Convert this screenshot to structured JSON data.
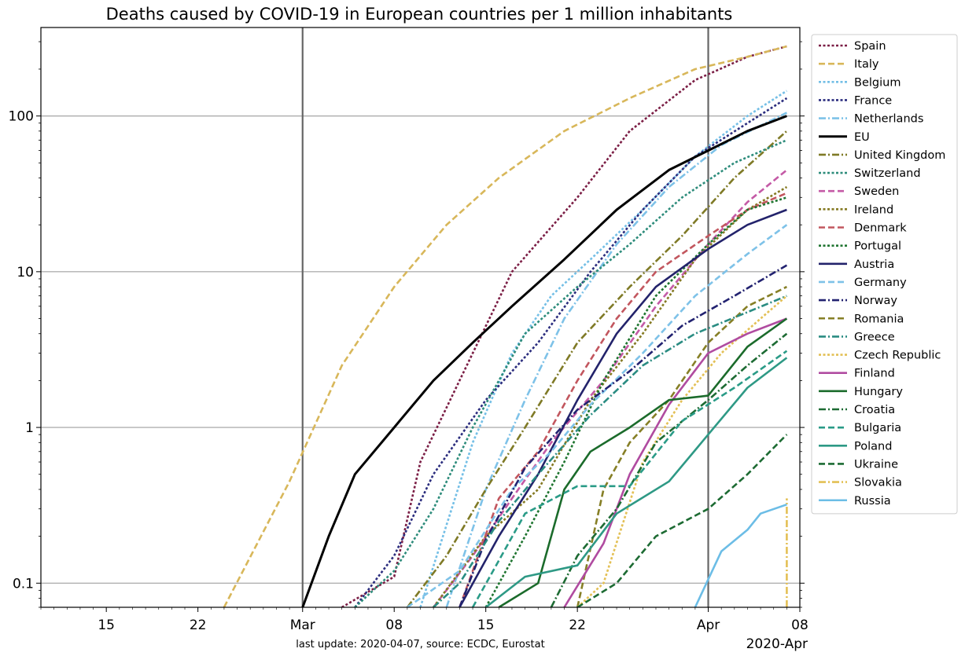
{
  "chart_data": {
    "type": "line",
    "title": "Deaths caused by COVID-19 in European countries per 1 million inhabitants",
    "footer": "last update: 2020-04-07, source: ECDC, Eurostat",
    "xlabel": "",
    "ylabel": "",
    "y_scale": "log",
    "ylim": [
      0.07,
      370
    ],
    "xlim": [
      "2020-02-10",
      "2020-04-08"
    ],
    "x_ticks": [
      {
        "date": "2020-02-15",
        "label": "15"
      },
      {
        "date": "2020-02-22",
        "label": "22"
      },
      {
        "date": "2020-03-01",
        "label": "Mar"
      },
      {
        "date": "2020-03-08",
        "label": "08"
      },
      {
        "date": "2020-03-15",
        "label": "15"
      },
      {
        "date": "2020-03-22",
        "label": "22"
      },
      {
        "date": "2020-04-01",
        "label": "Apr"
      },
      {
        "date": "2020-04-08",
        "label": "08"
      }
    ],
    "x_offset_label": "2020-Apr",
    "y_ticks": [
      {
        "value": 0.1,
        "label": "0.1"
      },
      {
        "value": 1,
        "label": "1"
      },
      {
        "value": 10,
        "label": "10"
      },
      {
        "value": 100,
        "label": "100"
      }
    ],
    "vlines": [
      "2020-03-01",
      "2020-04-01"
    ],
    "grid": "horizontal",
    "legend_position": "right, outside plot",
    "series": [
      {
        "name": "Spain",
        "color": "#7b1e45",
        "dash": "dotted",
        "x": [
          "2020-03-04",
          "2020-03-08",
          "2020-03-10",
          "2020-03-14",
          "2020-03-17",
          "2020-03-22",
          "2020-03-26",
          "2020-03-31",
          "2020-04-04",
          "2020-04-07"
        ],
        "y": [
          0.07,
          0.11,
          0.6,
          3,
          10,
          30,
          80,
          170,
          240,
          280
        ]
      },
      {
        "name": "Italy",
        "color": "#d8b75a",
        "dash": "dashed",
        "x": [
          "2020-02-24",
          "2020-02-29",
          "2020-03-04",
          "2020-03-08",
          "2020-03-12",
          "2020-03-16",
          "2020-03-21",
          "2020-03-26",
          "2020-03-31",
          "2020-04-04",
          "2020-04-07"
        ],
        "y": [
          0.07,
          0.45,
          2.5,
          8,
          20,
          40,
          80,
          130,
          200,
          240,
          280
        ]
      },
      {
        "name": "Belgium",
        "color": "#74bfe6",
        "dash": "dotted",
        "x": [
          "2020-03-10",
          "2020-03-14",
          "2020-03-17",
          "2020-03-20",
          "2020-03-23",
          "2020-03-27",
          "2020-03-31",
          "2020-04-04",
          "2020-04-07"
        ],
        "y": [
          0.07,
          0.8,
          3,
          7,
          12,
          25,
          55,
          100,
          145
        ]
      },
      {
        "name": "France",
        "color": "#2b2d7e",
        "dash": "dotted",
        "x": [
          "2020-03-05",
          "2020-03-08",
          "2020-03-11",
          "2020-03-15",
          "2020-03-19",
          "2020-03-23",
          "2020-03-27",
          "2020-03-31",
          "2020-04-04",
          "2020-04-07"
        ],
        "y": [
          0.07,
          0.15,
          0.5,
          1.5,
          3.5,
          10,
          25,
          55,
          90,
          130
        ]
      },
      {
        "name": "Netherlands",
        "color": "#7ec2e8",
        "dash": "dashdot",
        "x": [
          "2020-03-12",
          "2020-03-15",
          "2020-03-18",
          "2020-03-21",
          "2020-03-25",
          "2020-03-29",
          "2020-04-02",
          "2020-04-07"
        ],
        "y": [
          0.07,
          0.4,
          1.5,
          5,
          15,
          35,
          65,
          105
        ]
      },
      {
        "name": "EU",
        "color": "#000000",
        "dash": "solid",
        "x": [
          "2020-03-01",
          "2020-03-03",
          "2020-03-05",
          "2020-03-08",
          "2020-03-11",
          "2020-03-14",
          "2020-03-17",
          "2020-03-21",
          "2020-03-25",
          "2020-03-29",
          "2020-04-01",
          "2020-04-04",
          "2020-04-07"
        ],
        "y": [
          0.07,
          0.2,
          0.5,
          1,
          2,
          3.5,
          6,
          12,
          25,
          45,
          60,
          80,
          100
        ]
      },
      {
        "name": "United Kingdom",
        "color": "#7f7a26",
        "dash": "dashdot",
        "x": [
          "2020-03-09",
          "2020-03-12",
          "2020-03-15",
          "2020-03-18",
          "2020-03-22",
          "2020-03-26",
          "2020-03-30",
          "2020-04-03",
          "2020-04-07"
        ],
        "y": [
          0.07,
          0.15,
          0.4,
          1,
          3.5,
          8,
          17,
          40,
          80
        ]
      },
      {
        "name": "Switzerland",
        "color": "#2d8c7b",
        "dash": "dotted",
        "x": [
          "2020-03-05",
          "2020-03-08",
          "2020-03-11",
          "2020-03-14",
          "2020-03-18",
          "2020-03-22",
          "2020-03-26",
          "2020-03-30",
          "2020-04-03",
          "2020-04-07"
        ],
        "y": [
          0.07,
          0.12,
          0.3,
          1,
          4,
          8,
          15,
          30,
          50,
          70
        ]
      },
      {
        "name": "Sweden",
        "color": "#c45aa6",
        "dash": "dashed",
        "x": [
          "2020-03-11",
          "2020-03-14",
          "2020-03-17",
          "2020-03-20",
          "2020-03-24",
          "2020-03-28",
          "2020-04-01",
          "2020-04-04",
          "2020-04-07"
        ],
        "y": [
          0.07,
          0.15,
          0.35,
          0.8,
          2,
          6,
          15,
          28,
          45
        ]
      },
      {
        "name": "Ireland",
        "color": "#857a23",
        "dash": "dotted",
        "x": [
          "2020-03-11",
          "2020-03-15",
          "2020-03-19",
          "2020-03-23",
          "2020-03-27",
          "2020-03-31",
          "2020-04-04",
          "2020-04-07"
        ],
        "y": [
          0.07,
          0.2,
          0.4,
          1.5,
          4,
          12,
          25,
          35
        ]
      },
      {
        "name": "Denmark",
        "color": "#c2565e",
        "dash": "dashed",
        "x": [
          "2020-03-13",
          "2020-03-16",
          "2020-03-19",
          "2020-03-22",
          "2020-03-25",
          "2020-03-28",
          "2020-04-01",
          "2020-04-04",
          "2020-04-07"
        ],
        "y": [
          0.07,
          0.35,
          0.7,
          2,
          5,
          10,
          17,
          25,
          32
        ]
      },
      {
        "name": "Portugal",
        "color": "#1f7530",
        "dash": "dotted",
        "x": [
          "2020-03-15",
          "2020-03-18",
          "2020-03-21",
          "2020-03-24",
          "2020-03-28",
          "2020-04-01",
          "2020-04-04",
          "2020-04-07"
        ],
        "y": [
          0.07,
          0.2,
          0.6,
          2,
          7,
          15,
          25,
          30
        ]
      },
      {
        "name": "Austria",
        "color": "#23236b",
        "dash": "solid",
        "x": [
          "2020-03-13",
          "2020-03-16",
          "2020-03-19",
          "2020-03-22",
          "2020-03-25",
          "2020-03-28",
          "2020-04-01",
          "2020-04-04",
          "2020-04-07"
        ],
        "y": [
          0.07,
          0.2,
          0.5,
          1.5,
          4,
          8,
          14,
          20,
          25
        ]
      },
      {
        "name": "Germany",
        "color": "#7ec2e8",
        "dash": "dashed",
        "x": [
          "2020-03-09",
          "2020-03-13",
          "2020-03-17",
          "2020-03-20",
          "2020-03-23",
          "2020-03-27",
          "2020-03-31",
          "2020-04-04",
          "2020-04-07"
        ],
        "y": [
          0.07,
          0.12,
          0.4,
          0.7,
          1.4,
          3,
          7,
          13,
          20
        ]
      },
      {
        "name": "Norway",
        "color": "#222270",
        "dash": "dashdot",
        "x": [
          "2020-03-13",
          "2020-03-15",
          "2020-03-18",
          "2020-03-22",
          "2020-03-26",
          "2020-03-30",
          "2020-04-03",
          "2020-04-07"
        ],
        "y": [
          0.07,
          0.19,
          0.55,
          1.3,
          2.3,
          4.5,
          7,
          11
        ]
      },
      {
        "name": "Romania",
        "color": "#867f26",
        "dash": "dashed",
        "x": [
          "2020-03-22",
          "2020-03-24",
          "2020-03-26",
          "2020-03-29",
          "2020-04-01",
          "2020-04-04",
          "2020-04-07"
        ],
        "y": [
          0.07,
          0.4,
          0.8,
          1.5,
          3.5,
          6,
          8
        ]
      },
      {
        "name": "Greece",
        "color": "#2a8c82",
        "dash": "dashdot",
        "x": [
          "2020-03-11",
          "2020-03-13",
          "2020-03-16",
          "2020-03-19",
          "2020-03-23",
          "2020-03-27",
          "2020-03-31",
          "2020-04-04",
          "2020-04-07"
        ],
        "y": [
          0.07,
          0.1,
          0.25,
          0.5,
          1.2,
          2.5,
          4,
          5.5,
          7
        ]
      },
      {
        "name": "Czech Republic",
        "color": "#e3c055",
        "dash": "dotted",
        "x": [
          "2020-03-22",
          "2020-03-24",
          "2020-03-27",
          "2020-03-30",
          "2020-04-02",
          "2020-04-05",
          "2020-04-07"
        ],
        "y": [
          0.07,
          0.1,
          0.6,
          1.5,
          3,
          5,
          7
        ]
      },
      {
        "name": "Finland",
        "color": "#b04ba0",
        "dash": "solid",
        "x": [
          "2020-03-21",
          "2020-03-24",
          "2020-03-26",
          "2020-03-29",
          "2020-04-01",
          "2020-04-04",
          "2020-04-07"
        ],
        "y": [
          0.07,
          0.18,
          0.5,
          1.4,
          3,
          4,
          5
        ]
      },
      {
        "name": "Hungary",
        "color": "#1b6b2b",
        "dash": "solid",
        "x": [
          "2020-03-16",
          "2020-03-19",
          "2020-03-21",
          "2020-03-23",
          "2020-03-26",
          "2020-03-29",
          "2020-04-01",
          "2020-04-04",
          "2020-04-07"
        ],
        "y": [
          0.07,
          0.1,
          0.4,
          0.7,
          1,
          1.5,
          1.6,
          3.3,
          5
        ]
      },
      {
        "name": "Croatia",
        "color": "#1d6b33",
        "dash": "dashdot",
        "x": [
          "2020-03-20",
          "2020-03-22",
          "2020-03-25",
          "2020-03-28",
          "2020-04-01",
          "2020-04-04",
          "2020-04-07"
        ],
        "y": [
          0.07,
          0.15,
          0.3,
          0.8,
          1.5,
          2.5,
          4
        ]
      },
      {
        "name": "Bulgaria",
        "color": "#2a9b87",
        "dash": "dashed",
        "x": [
          "2020-03-14",
          "2020-03-18",
          "2020-03-22",
          "2020-03-26",
          "2020-03-30",
          "2020-04-03",
          "2020-04-07"
        ],
        "y": [
          0.07,
          0.28,
          0.42,
          0.42,
          1.1,
          1.8,
          3.1
        ]
      },
      {
        "name": "Poland",
        "color": "#2e9985",
        "dash": "solid",
        "x": [
          "2020-03-15",
          "2020-03-18",
          "2020-03-22",
          "2020-03-25",
          "2020-03-29",
          "2020-04-01",
          "2020-04-04",
          "2020-04-07"
        ],
        "y": [
          0.07,
          0.11,
          0.13,
          0.28,
          0.45,
          0.9,
          1.8,
          2.8
        ]
      },
      {
        "name": "Ukraine",
        "color": "#1d6b33",
        "dash": "dashed",
        "x": [
          "2020-03-22",
          "2020-03-25",
          "2020-03-28",
          "2020-04-01",
          "2020-04-04",
          "2020-04-07"
        ],
        "y": [
          0.07,
          0.1,
          0.2,
          0.3,
          0.5,
          0.9
        ]
      },
      {
        "name": "Slovakia",
        "color": "#e3c055",
        "dash": "dashdot",
        "x": [
          "2020-04-07",
          "2020-04-07"
        ],
        "y": [
          0.07,
          0.35
        ]
      },
      {
        "name": "Russia",
        "color": "#6cbde6",
        "dash": "solid",
        "x": [
          "2020-03-31",
          "2020-04-02",
          "2020-04-04",
          "2020-04-05",
          "2020-04-07"
        ],
        "y": [
          0.07,
          0.16,
          0.22,
          0.28,
          0.32
        ]
      }
    ]
  }
}
